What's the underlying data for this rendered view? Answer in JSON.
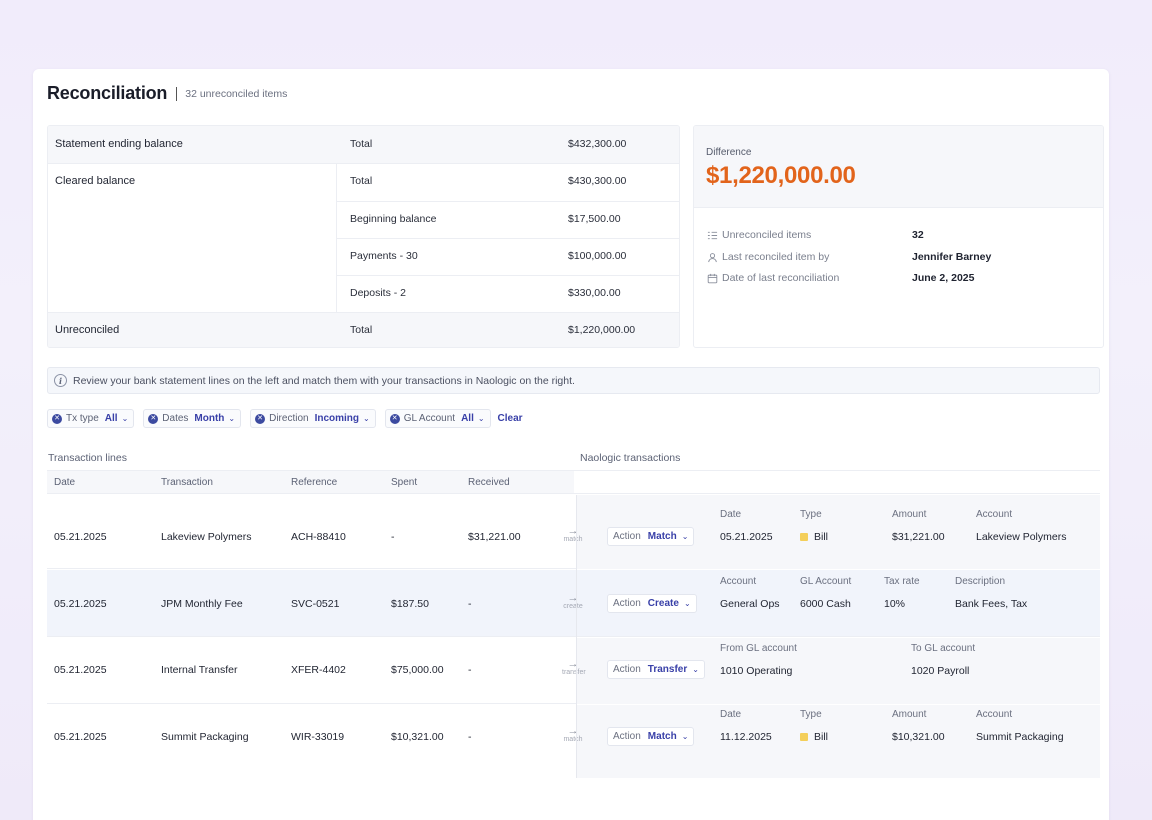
{
  "header": {
    "title": "Reconciliation",
    "subtitle": "32 unreconciled items"
  },
  "summary": {
    "statement_label": "Statement ending balance",
    "statement_total_label": "Total",
    "statement_total": "$432,300.00",
    "cleared_label": "Cleared balance",
    "cleared_total_label": "Total",
    "cleared_total": "$430,300.00",
    "beginning_label": "Beginning balance",
    "beginning_value": "$17,500.00",
    "payments_label": "Payments - 30",
    "payments_value": "$100,000.00",
    "deposits_label": "Deposits - 2",
    "deposits_value": "$330,00.00",
    "unreconciled_label": "Unreconciled",
    "unreconciled_total_label": "Total",
    "unreconciled_total": "$1,220,000.00"
  },
  "difference": {
    "label": "Difference",
    "value": "$1,220,000.00",
    "meta": [
      {
        "icon": "list-check-icon",
        "label": "Unreconciled items",
        "value": "32"
      },
      {
        "icon": "user-icon",
        "label": "Last reconciled item by",
        "value": "Jennifer Barney"
      },
      {
        "icon": "calendar-icon",
        "label": "Date of last reconciliation",
        "value": "June 2, 2025"
      }
    ]
  },
  "banner": {
    "text": "Review your bank statement lines on the left and match them with your transactions in Naologic on the right."
  },
  "filters": [
    {
      "label": "Tx type",
      "value": "All"
    },
    {
      "label": "Dates",
      "value": "Month"
    },
    {
      "label": "Direction",
      "value": "Incoming"
    },
    {
      "label": "GL Account",
      "value": "All"
    }
  ],
  "clear_label": "Clear",
  "sections": {
    "left": "Transaction lines",
    "right": "Naologic transactions"
  },
  "columns": [
    "Date",
    "Transaction",
    "Reference",
    "Spent",
    "Received"
  ],
  "rows": [
    {
      "date": "05.21.2025",
      "transaction": "Lakeview Polymers",
      "reference": "ACH-88410",
      "spent": "-",
      "received": "$31,221.00",
      "arrow_label": "match",
      "action_label": "Action",
      "action_value": "Match",
      "detail": [
        {
          "h": "Date",
          "v": "05.21.2025"
        },
        {
          "h": "Type",
          "v": "Bill"
        },
        {
          "h": "Amount",
          "v": "$31,221.00"
        },
        {
          "h": "Account",
          "v": "Lakeview Polymers"
        }
      ]
    },
    {
      "date": "05.21.2025",
      "transaction": "JPM Monthly Fee",
      "reference": "SVC-0521",
      "spent": "$187.50",
      "received": "-",
      "arrow_label": "create",
      "action_label": "Action",
      "action_value": "Create",
      "detail": [
        {
          "h": "Account",
          "v": "General Ops"
        },
        {
          "h": "GL Account",
          "v": "6000 Cash"
        },
        {
          "h": "Tax rate",
          "v": "10%"
        },
        {
          "h": "Description",
          "v": "Bank Fees, Tax"
        }
      ]
    },
    {
      "date": "05.21.2025",
      "transaction": "Internal Transfer",
      "reference": "XFER-4402",
      "spent": "$75,000.00",
      "received": "-",
      "arrow_label": "transfer",
      "action_label": "Action",
      "action_value": "Transfer",
      "detail": [
        {
          "h": "From GL account",
          "v": "1010 Operating"
        },
        {
          "h": "To GL account",
          "v": "1020 Payroll"
        }
      ]
    },
    {
      "date": "05.21.2025",
      "transaction": "Summit Packaging",
      "reference": "WIR-33019",
      "spent": "$10,321.00",
      "received": "-",
      "arrow_label": "match",
      "action_label": "Action",
      "action_value": "Match",
      "detail": [
        {
          "h": "Date",
          "v": "11.12.2025"
        },
        {
          "h": "Type",
          "v": "Bill"
        },
        {
          "h": "Amount",
          "v": "$10,321.00"
        },
        {
          "h": "Account",
          "v": "Summit Packaging"
        }
      ]
    }
  ],
  "colors": {
    "accent": "#3940a8",
    "difference": "#e2641b",
    "bill": "#f4cf5a"
  }
}
